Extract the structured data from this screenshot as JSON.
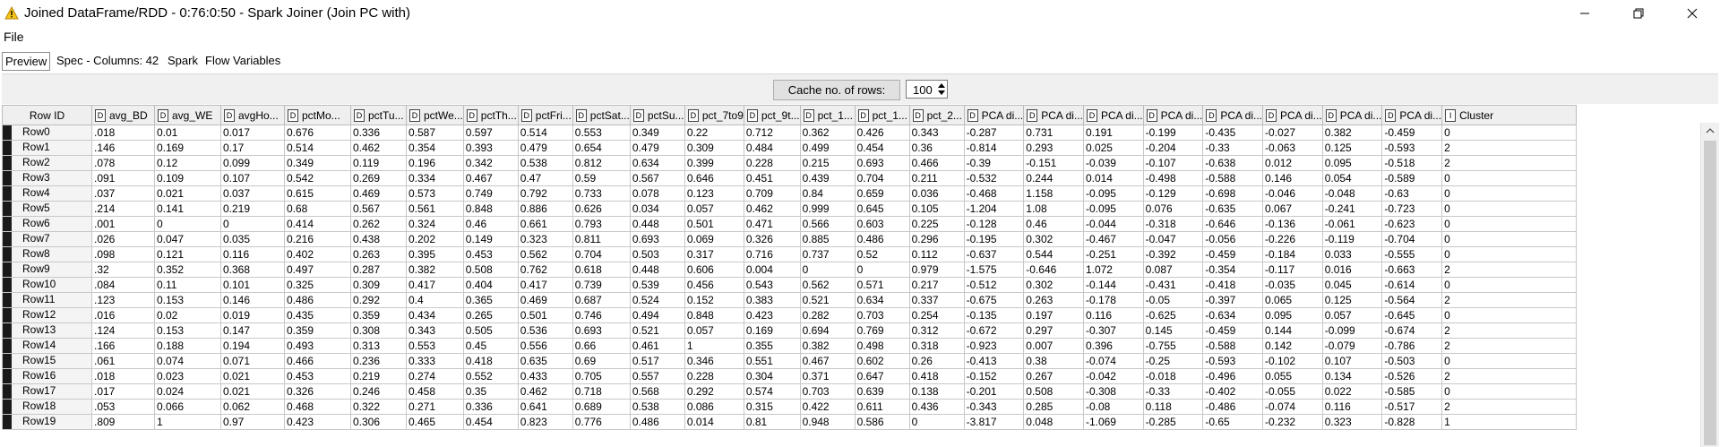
{
  "window": {
    "title": "Joined DataFrame/RDD - 0:76:0:50 - Spark Joiner (Join PC with)",
    "icon": "warning-triangle-icon"
  },
  "menu": {
    "file": "File"
  },
  "tabs": [
    {
      "label": "Preview",
      "active": true
    },
    {
      "label": "Spec - Columns: 42",
      "active": false
    },
    {
      "label": "Spark",
      "active": false
    },
    {
      "label": "Flow Variables",
      "active": false
    }
  ],
  "cache": {
    "button_label": "Cache no. of rows:",
    "value": "100"
  },
  "table": {
    "rowid_header": "Row ID",
    "columns": [
      {
        "type": "D",
        "label": "avg_BD"
      },
      {
        "type": "D",
        "label": "avg_WE"
      },
      {
        "type": "D",
        "label": "avgHo..."
      },
      {
        "type": "D",
        "label": "pctMo..."
      },
      {
        "type": "D",
        "label": "pctTu..."
      },
      {
        "type": "D",
        "label": "pctWe..."
      },
      {
        "type": "D",
        "label": "pctTh..."
      },
      {
        "type": "D",
        "label": "pctFri..."
      },
      {
        "type": "D",
        "label": "pctSat..."
      },
      {
        "type": "D",
        "label": "pctSu..."
      },
      {
        "type": "D",
        "label": "pct_7to9"
      },
      {
        "type": "D",
        "label": "pct_9t..."
      },
      {
        "type": "D",
        "label": "pct_1..."
      },
      {
        "type": "D",
        "label": "pct_1..."
      },
      {
        "type": "D",
        "label": "pct_2..."
      },
      {
        "type": "D",
        "label": "PCA di..."
      },
      {
        "type": "D",
        "label": "PCA di..."
      },
      {
        "type": "D",
        "label": "PCA di..."
      },
      {
        "type": "D",
        "label": "PCA di..."
      },
      {
        "type": "D",
        "label": "PCA di..."
      },
      {
        "type": "D",
        "label": "PCA di..."
      },
      {
        "type": "D",
        "label": "PCA di..."
      },
      {
        "type": "D",
        "label": "PCA di..."
      },
      {
        "type": "I",
        "label": "Cluster"
      }
    ],
    "rows": [
      {
        "id": "Row0",
        "cells": [
          ".018",
          "0.01",
          "0.017",
          "0.676",
          "0.336",
          "0.587",
          "0.597",
          "0.514",
          "0.553",
          "0.349",
          "0.22",
          "0.712",
          "0.362",
          "0.426",
          "0.343",
          "-0.287",
          "0.731",
          "0.191",
          "-0.199",
          "-0.435",
          "-0.027",
          "0.382",
          "-0.459",
          "0"
        ]
      },
      {
        "id": "Row1",
        "cells": [
          ".146",
          "0.169",
          "0.17",
          "0.514",
          "0.462",
          "0.354",
          "0.393",
          "0.479",
          "0.654",
          "0.479",
          "0.309",
          "0.484",
          "0.499",
          "0.454",
          "0.36",
          "-0.814",
          "0.293",
          "0.025",
          "-0.204",
          "-0.33",
          "-0.063",
          "0.125",
          "-0.593",
          "2"
        ]
      },
      {
        "id": "Row2",
        "cells": [
          ".078",
          "0.12",
          "0.099",
          "0.349",
          "0.119",
          "0.196",
          "0.342",
          "0.538",
          "0.812",
          "0.634",
          "0.399",
          "0.228",
          "0.215",
          "0.693",
          "0.466",
          "-0.39",
          "-0.151",
          "-0.039",
          "-0.107",
          "-0.638",
          "0.012",
          "0.095",
          "-0.518",
          "2"
        ]
      },
      {
        "id": "Row3",
        "cells": [
          ".091",
          "0.109",
          "0.107",
          "0.542",
          "0.269",
          "0.334",
          "0.467",
          "0.47",
          "0.59",
          "0.567",
          "0.646",
          "0.451",
          "0.439",
          "0.704",
          "0.211",
          "-0.532",
          "0.244",
          "0.014",
          "-0.498",
          "-0.588",
          "0.146",
          "0.054",
          "-0.589",
          "0"
        ]
      },
      {
        "id": "Row4",
        "cells": [
          ".037",
          "0.021",
          "0.037",
          "0.615",
          "0.469",
          "0.573",
          "0.749",
          "0.792",
          "0.733",
          "0.078",
          "0.123",
          "0.709",
          "0.84",
          "0.659",
          "0.036",
          "-0.468",
          "1.158",
          "-0.095",
          "-0.129",
          "-0.698",
          "-0.046",
          "-0.048",
          "-0.63",
          "0"
        ]
      },
      {
        "id": "Row5",
        "cells": [
          ".214",
          "0.141",
          "0.219",
          "0.68",
          "0.567",
          "0.561",
          "0.848",
          "0.886",
          "0.626",
          "0.034",
          "0.057",
          "0.462",
          "0.999",
          "0.645",
          "0.105",
          "-1.204",
          "1.08",
          "-0.095",
          "0.076",
          "-0.635",
          "0.067",
          "-0.241",
          "-0.723",
          "0"
        ]
      },
      {
        "id": "Row6",
        "cells": [
          ".001",
          "0",
          "0",
          "0.414",
          "0.262",
          "0.324",
          "0.46",
          "0.661",
          "0.793",
          "0.448",
          "0.501",
          "0.471",
          "0.566",
          "0.603",
          "0.225",
          "-0.128",
          "0.46",
          "-0.044",
          "-0.318",
          "-0.646",
          "-0.136",
          "-0.061",
          "-0.623",
          "0"
        ]
      },
      {
        "id": "Row7",
        "cells": [
          ".026",
          "0.047",
          "0.035",
          "0.216",
          "0.438",
          "0.202",
          "0.149",
          "0.323",
          "0.811",
          "0.693",
          "0.069",
          "0.326",
          "0.885",
          "0.486",
          "0.296",
          "-0.195",
          "0.302",
          "-0.467",
          "-0.047",
          "-0.056",
          "-0.226",
          "-0.119",
          "-0.704",
          "0"
        ]
      },
      {
        "id": "Row8",
        "cells": [
          ".098",
          "0.121",
          "0.116",
          "0.402",
          "0.263",
          "0.395",
          "0.453",
          "0.562",
          "0.704",
          "0.503",
          "0.317",
          "0.716",
          "0.737",
          "0.52",
          "0.112",
          "-0.637",
          "0.544",
          "-0.251",
          "-0.392",
          "-0.459",
          "-0.184",
          "0.033",
          "-0.555",
          "0"
        ]
      },
      {
        "id": "Row9",
        "cells": [
          ".32",
          "0.352",
          "0.368",
          "0.497",
          "0.287",
          "0.382",
          "0.508",
          "0.762",
          "0.618",
          "0.448",
          "0.606",
          "0.004",
          "0",
          "0",
          "0.979",
          "-1.575",
          "-0.646",
          "1.072",
          "0.087",
          "-0.354",
          "-0.117",
          "0.016",
          "-0.663",
          "2"
        ]
      },
      {
        "id": "Row10",
        "cells": [
          ".084",
          "0.11",
          "0.101",
          "0.325",
          "0.309",
          "0.417",
          "0.404",
          "0.417",
          "0.739",
          "0.539",
          "0.456",
          "0.543",
          "0.562",
          "0.571",
          "0.217",
          "-0.512",
          "0.302",
          "-0.144",
          "-0.431",
          "-0.418",
          "-0.035",
          "0.045",
          "-0.614",
          "0"
        ]
      },
      {
        "id": "Row11",
        "cells": [
          ".123",
          "0.153",
          "0.146",
          "0.486",
          "0.292",
          "0.4",
          "0.365",
          "0.469",
          "0.687",
          "0.524",
          "0.152",
          "0.383",
          "0.521",
          "0.634",
          "0.337",
          "-0.675",
          "0.263",
          "-0.178",
          "-0.05",
          "-0.397",
          "0.065",
          "0.125",
          "-0.564",
          "2"
        ]
      },
      {
        "id": "Row12",
        "cells": [
          ".016",
          "0.02",
          "0.019",
          "0.435",
          "0.359",
          "0.434",
          "0.265",
          "0.501",
          "0.746",
          "0.494",
          "0.848",
          "0.423",
          "0.282",
          "0.703",
          "0.254",
          "-0.135",
          "0.197",
          "0.116",
          "-0.625",
          "-0.634",
          "0.095",
          "0.057",
          "-0.645",
          "0"
        ]
      },
      {
        "id": "Row13",
        "cells": [
          ".124",
          "0.153",
          "0.147",
          "0.359",
          "0.308",
          "0.343",
          "0.505",
          "0.536",
          "0.693",
          "0.521",
          "0.057",
          "0.169",
          "0.694",
          "0.769",
          "0.312",
          "-0.672",
          "0.297",
          "-0.307",
          "0.145",
          "-0.459",
          "0.144",
          "-0.099",
          "-0.674",
          "2"
        ]
      },
      {
        "id": "Row14",
        "cells": [
          ".166",
          "0.188",
          "0.194",
          "0.493",
          "0.313",
          "0.553",
          "0.45",
          "0.556",
          "0.66",
          "0.461",
          "1",
          "0.355",
          "0.382",
          "0.498",
          "0.318",
          "-0.923",
          "0.007",
          "0.396",
          "-0.755",
          "-0.588",
          "0.142",
          "-0.079",
          "-0.786",
          "2"
        ]
      },
      {
        "id": "Row15",
        "cells": [
          ".061",
          "0.074",
          "0.071",
          "0.466",
          "0.236",
          "0.333",
          "0.418",
          "0.635",
          "0.69",
          "0.517",
          "0.346",
          "0.551",
          "0.467",
          "0.602",
          "0.26",
          "-0.413",
          "0.38",
          "-0.074",
          "-0.25",
          "-0.593",
          "-0.102",
          "0.107",
          "-0.503",
          "0"
        ]
      },
      {
        "id": "Row16",
        "cells": [
          ".018",
          "0.023",
          "0.021",
          "0.453",
          "0.219",
          "0.274",
          "0.552",
          "0.433",
          "0.705",
          "0.557",
          "0.228",
          "0.304",
          "0.371",
          "0.647",
          "0.418",
          "-0.152",
          "0.267",
          "-0.042",
          "-0.018",
          "-0.496",
          "0.055",
          "0.134",
          "-0.526",
          "2"
        ]
      },
      {
        "id": "Row17",
        "cells": [
          ".017",
          "0.024",
          "0.021",
          "0.326",
          "0.246",
          "0.458",
          "0.35",
          "0.462",
          "0.718",
          "0.568",
          "0.292",
          "0.574",
          "0.703",
          "0.639",
          "0.138",
          "-0.201",
          "0.508",
          "-0.308",
          "-0.33",
          "-0.402",
          "-0.055",
          "0.022",
          "-0.585",
          "0"
        ]
      },
      {
        "id": "Row18",
        "cells": [
          ".053",
          "0.066",
          "0.062",
          "0.468",
          "0.322",
          "0.271",
          "0.336",
          "0.641",
          "0.689",
          "0.538",
          "0.086",
          "0.315",
          "0.422",
          "0.611",
          "0.436",
          "-0.343",
          "0.285",
          "-0.08",
          "0.118",
          "-0.486",
          "-0.074",
          "0.116",
          "-0.517",
          "2"
        ]
      },
      {
        "id": "Row19",
        "cells": [
          ".809",
          "1",
          "0.97",
          "0.423",
          "0.306",
          "0.465",
          "0.454",
          "0.823",
          "0.776",
          "0.486",
          "0.014",
          "0.81",
          "0.948",
          "0.586",
          "0",
          "-3.817",
          "0.048",
          "-1.069",
          "-0.285",
          "-0.65",
          "-0.232",
          "0.323",
          "-0.828",
          "1"
        ]
      }
    ]
  }
}
